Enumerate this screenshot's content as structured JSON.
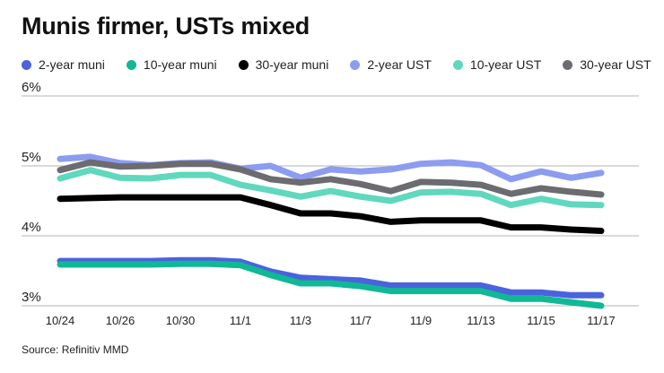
{
  "chart_data": {
    "type": "line",
    "title": "Munis firmer, USTs mixed",
    "source": "Source: Refinitiv MMD",
    "xlabel": "",
    "ylabel": "",
    "ylim": [
      3,
      6
    ],
    "y_ticks": [
      "3%",
      "4%",
      "5%",
      "6%"
    ],
    "y_tick_values": [
      3,
      4,
      5,
      6
    ],
    "grid": "horizontal",
    "legend_position": "top",
    "x": [
      "10/24",
      "10/25",
      "10/26",
      "10/27",
      "10/30",
      "10/31",
      "11/1",
      "11/2",
      "11/3",
      "11/6",
      "11/7",
      "11/8",
      "11/9",
      "11/10",
      "11/13",
      "11/14",
      "11/15",
      "11/16",
      "11/17"
    ],
    "x_tick_labels": [
      "10/24",
      "10/26",
      "10/30",
      "11/1",
      "11/3",
      "11/7",
      "11/9",
      "11/13",
      "11/15",
      "11/17"
    ],
    "x_tick_indices": [
      0,
      2,
      4,
      6,
      8,
      10,
      12,
      14,
      16,
      18
    ],
    "series": [
      {
        "name": "2-year muni",
        "color": "#4a63dc",
        "values": [
          3.64,
          3.64,
          3.64,
          3.64,
          3.65,
          3.65,
          3.63,
          3.49,
          3.4,
          3.38,
          3.36,
          3.29,
          3.29,
          3.29,
          3.29,
          3.19,
          3.19,
          3.15,
          3.15
        ]
      },
      {
        "name": "10-year muni",
        "color": "#10b896",
        "values": [
          3.59,
          3.59,
          3.59,
          3.59,
          3.6,
          3.6,
          3.58,
          3.44,
          3.32,
          3.32,
          3.28,
          3.21,
          3.21,
          3.21,
          3.21,
          3.1,
          3.1,
          3.05,
          3.0
        ]
      },
      {
        "name": "30-year muni",
        "color": "#000000",
        "values": [
          4.53,
          4.54,
          4.55,
          4.55,
          4.55,
          4.55,
          4.55,
          4.44,
          4.32,
          4.32,
          4.28,
          4.2,
          4.22,
          4.22,
          4.22,
          4.12,
          4.12,
          4.09,
          4.07
        ]
      },
      {
        "name": "2-year UST",
        "color": "#8c9cf0",
        "values": [
          5.1,
          5.13,
          5.04,
          5.01,
          5.04,
          5.05,
          4.96,
          5.0,
          4.83,
          4.95,
          4.92,
          4.95,
          5.03,
          5.05,
          5.01,
          4.81,
          4.92,
          4.83,
          4.9
        ]
      },
      {
        "name": "10-year UST",
        "color": "#5fd8be",
        "values": [
          4.82,
          4.94,
          4.83,
          4.82,
          4.87,
          4.87,
          4.73,
          4.65,
          4.56,
          4.64,
          4.56,
          4.5,
          4.62,
          4.63,
          4.6,
          4.44,
          4.53,
          4.45,
          4.44
        ]
      },
      {
        "name": "30-year UST",
        "color": "#6b6b70",
        "values": [
          4.94,
          5.05,
          4.99,
          5.0,
          5.03,
          5.03,
          4.95,
          4.81,
          4.76,
          4.81,
          4.74,
          4.64,
          4.77,
          4.76,
          4.73,
          4.6,
          4.68,
          4.63,
          4.59
        ]
      }
    ],
    "draw_order": [
      "2-year UST",
      "30-year UST",
      "10-year UST",
      "30-year muni",
      "2-year muni",
      "10-year muni"
    ]
  }
}
